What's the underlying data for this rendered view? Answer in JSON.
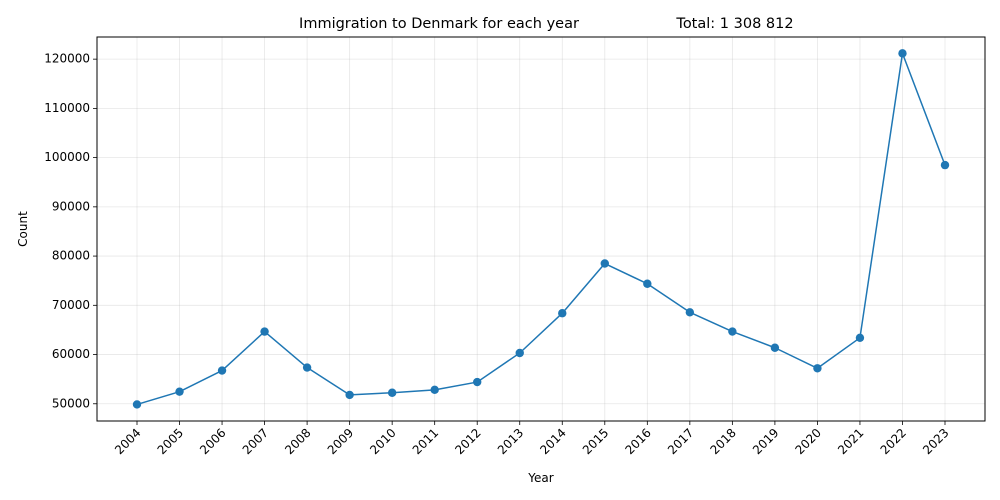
{
  "chart_data": {
    "type": "line",
    "title": "Immigration to Denmark for each year",
    "subtitle": "Total: 1 308 812",
    "xlabel": "Year",
    "ylabel": "Count",
    "categories": [
      "2004",
      "2005",
      "2006",
      "2007",
      "2008",
      "2009",
      "2010",
      "2011",
      "2012",
      "2013",
      "2014",
      "2015",
      "2016",
      "2017",
      "2018",
      "2019",
      "2020",
      "2021",
      "2022",
      "2023"
    ],
    "series": [
      {
        "values": [
          49860,
          52460,
          56750,
          64660,
          57360,
          51800,
          52240,
          52830,
          54410,
          60310,
          68390,
          78490,
          74380,
          68580,
          64670,
          61380,
          57210,
          63400,
          121180,
          98480
        ],
        "color": "#1f77b4"
      }
    ],
    "ylim": [
      46500,
      124500
    ],
    "yticks": [
      50000,
      60000,
      70000,
      80000,
      90000,
      100000,
      110000,
      120000
    ],
    "grid": true,
    "legend": "none"
  }
}
